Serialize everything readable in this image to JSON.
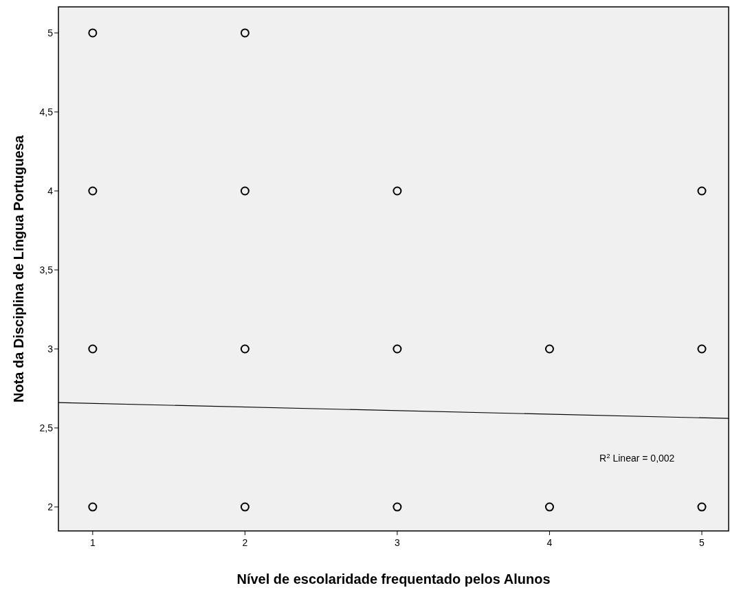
{
  "chart_data": {
    "type": "scatter",
    "xlabel": "Nível de escolaridade frequentado pelos Alunos",
    "ylabel": "Nota da Disciplina de Língua Portuguesa",
    "xlim": [
      0.775,
      5.176
    ],
    "ylim": [
      1.848,
      5.165
    ],
    "xticks": [
      1,
      2,
      3,
      4,
      5
    ],
    "yticks": [
      2,
      {
        "value": 2.5,
        "label": "2,5"
      },
      3,
      {
        "value": 3.5,
        "label": "3,5"
      },
      4,
      {
        "value": 4.5,
        "label": "4,5"
      },
      5
    ],
    "marker": "circle",
    "grid": false,
    "series": [
      {
        "color": "#000000",
        "x": [
          1,
          1,
          1,
          1,
          2,
          2,
          2,
          2,
          3,
          3,
          3,
          4,
          4,
          5,
          5,
          5
        ],
        "values": [
          5,
          4,
          3,
          2,
          5,
          4,
          3,
          2,
          4,
          3,
          2,
          3,
          2,
          4,
          3,
          2
        ]
      },
      {
        "type": "line",
        "color": "#000000",
        "marker": "none",
        "x": [
          0.775,
          5.176
        ],
        "values": [
          2.66,
          2.56
        ]
      }
    ],
    "annotations": [
      "R$^{2}$ Linear = 0,002"
    ]
  }
}
